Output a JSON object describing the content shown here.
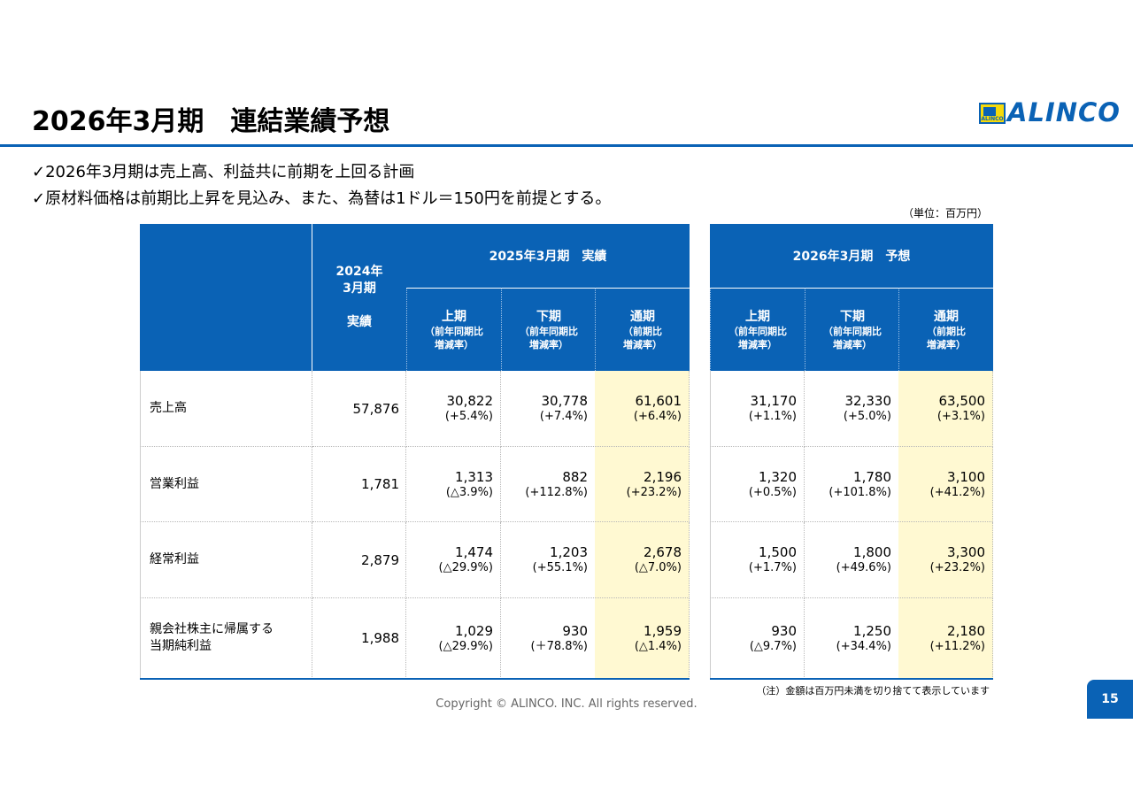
{
  "header": {
    "title": "2026年3月期　連結業績予想",
    "logo": "ALINCO",
    "logo_icon_text": "ALINCO"
  },
  "bullets": [
    "✓2026年3月期は売上高、利益共に前期を上回る計画",
    "✓原材料価格は前期比上昇を見込み、また、為替は1ドル＝150円を前提とする。"
  ],
  "unit": "（単位：百万円）",
  "table": {
    "corner_header": [
      "2024年",
      "3月期",
      "実績"
    ],
    "group_headers": [
      "2025年3月期　実績",
      "2026年3月期　予想"
    ],
    "sub_headers": [
      {
        "name": "上期",
        "note": [
          "（前年同期比",
          "増減率）"
        ]
      },
      {
        "name": "下期",
        "note": [
          "（前年同期比",
          "増減率）"
        ]
      },
      {
        "name": "通期",
        "note": [
          "（前期比",
          "増減率）"
        ]
      },
      {
        "name": "上期",
        "note": [
          "（前年同期比",
          "増減率）"
        ]
      },
      {
        "name": "下期",
        "note": [
          "（前年同期比",
          "増減率）"
        ]
      },
      {
        "name": "通期",
        "note": [
          "（前期比",
          "増減率）"
        ]
      }
    ],
    "rows": [
      {
        "label": [
          "売上高"
        ],
        "fy2024": "57,876",
        "cells": [
          {
            "value": "30,822",
            "change": "(+5.4%)"
          },
          {
            "value": "30,778",
            "change": "(+7.4%)"
          },
          {
            "value": "61,601",
            "change": "(+6.4%)"
          },
          {
            "value": "31,170",
            "change": "(+1.1%)"
          },
          {
            "value": "32,330",
            "change": "(+5.0%)"
          },
          {
            "value": "63,500",
            "change": "(+3.1%)"
          }
        ]
      },
      {
        "label": [
          "営業利益"
        ],
        "fy2024": "1,781",
        "cells": [
          {
            "value": "1,313",
            "change": "(△3.9%)"
          },
          {
            "value": "882",
            "change": "(+112.8%)"
          },
          {
            "value": "2,196",
            "change": "(+23.2%)"
          },
          {
            "value": "1,320",
            "change": "(+0.5%)"
          },
          {
            "value": "1,780",
            "change": "(+101.8%)"
          },
          {
            "value": "3,100",
            "change": "(+41.2%)"
          }
        ]
      },
      {
        "label": [
          "経常利益"
        ],
        "fy2024": "2,879",
        "cells": [
          {
            "value": "1,474",
            "change": "(△29.9%)"
          },
          {
            "value": "1,203",
            "change": "(+55.1%)"
          },
          {
            "value": "2,678",
            "change": "(△7.0%)"
          },
          {
            "value": "1,500",
            "change": "(+1.7%)"
          },
          {
            "value": "1,800",
            "change": "(+49.6%)"
          },
          {
            "value": "3,300",
            "change": "(+23.2%)"
          }
        ]
      },
      {
        "label": [
          "親会社株主に帰属する",
          "当期純利益"
        ],
        "fy2024": "1,988",
        "cells": [
          {
            "value": "1,029",
            "change": "(△29.9%)"
          },
          {
            "value": "930",
            "change": "(＋78.8%)"
          },
          {
            "value": "1,959",
            "change": "(△1.4%)"
          },
          {
            "value": "930",
            "change": "(△9.7%)"
          },
          {
            "value": "1,250",
            "change": "(+34.4%)"
          },
          {
            "value": "2,180",
            "change": "(+11.2%)"
          }
        ]
      }
    ]
  },
  "footnote": "（注）金額は百万円未満を切り捨てて表示しています",
  "copyright": "Copyright © ALINCO. INC. All rights reserved.",
  "page_number": "15"
}
